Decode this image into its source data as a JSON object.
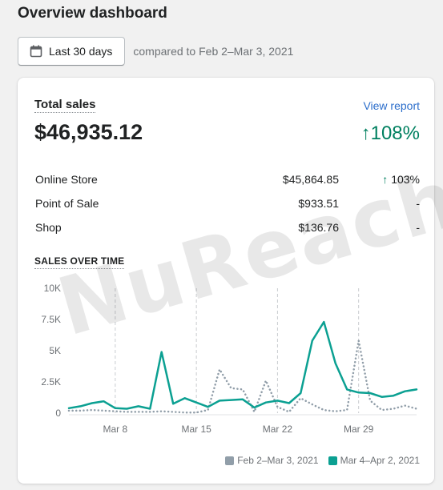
{
  "page": {
    "title": "Overview dashboard"
  },
  "date_filter": {
    "label": "Last 30 days",
    "comparison": "compared to Feb 2–Mar 3, 2021"
  },
  "card": {
    "title": "Total sales",
    "view_report": "View report",
    "total": "$46,935.12",
    "total_change": "108%",
    "rows": [
      {
        "channel": "Online Store",
        "amount": "$45,864.85",
        "change": "103%",
        "trend": "up"
      },
      {
        "channel": "Point of Sale",
        "amount": "$933.51",
        "change": "-",
        "trend": "none"
      },
      {
        "channel": "Shop",
        "amount": "$136.76",
        "change": "-",
        "trend": "none"
      }
    ],
    "chart_title": "SALES OVER TIME"
  },
  "watermark": "NuReach",
  "colors": {
    "current": "#0ba092",
    "previous": "#919ea9",
    "accent_up": "#008060",
    "link": "#2c6ecb"
  },
  "chart_data": {
    "type": "line",
    "ylim": [
      0,
      10000
    ],
    "y_ticks": [
      0,
      2500,
      5000,
      7500,
      10000
    ],
    "y_tick_labels": [
      "0",
      "2.5K",
      "5K",
      "7.5K",
      "10K"
    ],
    "x_tick_labels": [
      "Mar 8",
      "Mar 15",
      "Mar 22",
      "Mar 29"
    ],
    "x_tick_index": [
      4,
      11,
      18,
      25
    ],
    "grid": true,
    "legend_position": "bottom-right",
    "series": [
      {
        "name": "Feb 2–Mar 3, 2021",
        "style": "dotted",
        "values": [
          200,
          200,
          250,
          200,
          150,
          100,
          100,
          100,
          150,
          100,
          50,
          50,
          250,
          3500,
          2000,
          1900,
          100,
          2600,
          500,
          100,
          1200,
          700,
          250,
          150,
          250,
          5800,
          1000,
          250,
          350,
          600,
          350
        ]
      },
      {
        "name": "Mar 4–Apr 2, 2021",
        "style": "solid",
        "values": [
          400,
          550,
          800,
          950,
          400,
          350,
          550,
          350,
          4900,
          750,
          1200,
          850,
          500,
          1000,
          1050,
          1100,
          450,
          850,
          1000,
          800,
          1600,
          5800,
          7300,
          4000,
          1900,
          1650,
          1600,
          1300,
          1400,
          1750,
          1900
        ]
      }
    ]
  }
}
